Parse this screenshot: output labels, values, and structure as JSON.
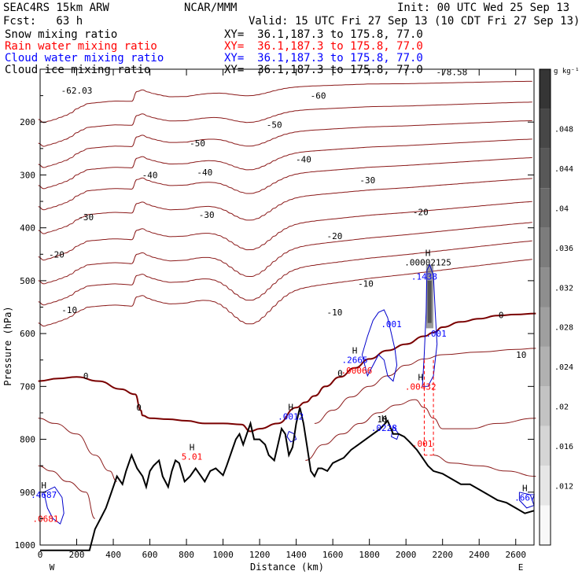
{
  "header": {
    "model": "SEAC4RS 15km ARW",
    "center": "NCAR/MMM",
    "init": "Init: 00 UTC Wed 25 Sep 13",
    "fcst": "Fcst:   63 h",
    "valid": "Valid: 15 UTC Fri 27 Sep 13 (10 CDT Fri 27 Sep 13)"
  },
  "fields": [
    {
      "name": "Snow mixing ratio",
      "xy": "XY=  36.1,187.3 to 175.8, 77.0",
      "color": "#000000"
    },
    {
      "name": "Rain water mixing ratio",
      "xy": "XY=  36.1,187.3 to 175.8, 77.0",
      "color": "#ff0000"
    },
    {
      "name": "Cloud water mixing ratio",
      "xy": "XY=  36.1,187.3 to 175.8, 77.0",
      "color": "#0000ff"
    },
    {
      "name": "Cloud ice mixing ratio",
      "xy": "XY=  36.1,187.3 to 175.8, 77.0",
      "color": "#000000"
    }
  ],
  "chart_data": {
    "type": "contour_cross_section",
    "xlabel": "Distance (km)",
    "ylabel": "Pressure (hPa)",
    "xlim": [
      0,
      2700
    ],
    "ylim": [
      1000,
      100
    ],
    "xticks": [
      0,
      200,
      400,
      600,
      800,
      1000,
      1200,
      1400,
      1600,
      1800,
      2000,
      2200,
      2400,
      2600
    ],
    "yticks": [
      200,
      300,
      400,
      500,
      600,
      700,
      800,
      900,
      1000
    ],
    "x_end_labels": {
      "left": "W",
      "right": "E"
    },
    "colorbar": {
      "unit": "g kg⁻¹",
      "ticks": [
        ".012",
        ".016",
        ".02",
        ".024",
        ".028",
        ".032",
        ".036",
        ".04",
        ".044",
        ".048"
      ]
    },
    "temperature_contour_labels": [
      {
        "text": "-62.03",
        "x": 200,
        "p": 140
      },
      {
        "text": "-78.58",
        "x": 2250,
        "p": 105
      },
      {
        "text": "-60",
        "x": 1520,
        "p": 150
      },
      {
        "text": "-50",
        "x": 860,
        "p": 240
      },
      {
        "text": "-50",
        "x": 1280,
        "p": 205
      },
      {
        "text": "-40",
        "x": 600,
        "p": 300
      },
      {
        "text": "-40",
        "x": 900,
        "p": 295
      },
      {
        "text": "-40",
        "x": 1440,
        "p": 270
      },
      {
        "text": "-30",
        "x": 250,
        "p": 380
      },
      {
        "text": "-30",
        "x": 910,
        "p": 375
      },
      {
        "text": "-30",
        "x": 1790,
        "p": 310
      },
      {
        "text": "-20",
        "x": 90,
        "p": 450
      },
      {
        "text": "-20",
        "x": 1610,
        "p": 415
      },
      {
        "text": "-20",
        "x": 2080,
        "p": 370
      },
      {
        "text": "-10",
        "x": 160,
        "p": 555
      },
      {
        "text": "-10",
        "x": 1610,
        "p": 560
      },
      {
        "text": "-10",
        "x": 1780,
        "p": 505
      },
      {
        "text": "0",
        "x": 250,
        "p": 680
      },
      {
        "text": "0",
        "x": 540,
        "p": 740
      },
      {
        "text": "0",
        "x": 1640,
        "p": 675
      },
      {
        "text": "0",
        "x": 2520,
        "p": 565
      },
      {
        "text": "10",
        "x": 2630,
        "p": 640
      },
      {
        "text": "10",
        "x": 1870,
        "p": 762
      }
    ],
    "extrema_labels": [
      {
        "letter": "H",
        "value": ".00002125",
        "x": 2120,
        "p": 465,
        "color": "#000000"
      },
      {
        "letter": "",
        "value": ".1438",
        "x": 2100,
        "p": 492,
        "color": "#0000ff"
      },
      {
        "letter": "",
        "value": ".001",
        "x": 1920,
        "p": 582,
        "color": "#0000ff"
      },
      {
        "letter": "",
        "value": ".001",
        "x": 2165,
        "p": 600,
        "color": "#0000ff"
      },
      {
        "letter": "H",
        "value": ".2665",
        "x": 1720,
        "p": 650,
        "color": "#0000ff"
      },
      {
        "letter": "",
        "value": ".00066",
        "x": 1730,
        "p": 670,
        "color": "#ff0000"
      },
      {
        "letter": "H",
        "value": ".00432",
        "x": 2080,
        "p": 700,
        "color": "#ff0000"
      },
      {
        "letter": "H",
        "value": ".0012",
        "x": 1370,
        "p": 757,
        "color": "#0000ff"
      },
      {
        "letter": "H",
        "value": ".0228",
        "x": 1880,
        "p": 778,
        "color": "#0000ff"
      },
      {
        "letter": "",
        "value": ".001",
        "x": 2090,
        "p": 808,
        "color": "#ff0000"
      },
      {
        "letter": "H",
        "value": "5.01",
        "x": 830,
        "p": 833,
        "color": "#ff0000"
      },
      {
        "letter": "H",
        "value": ".4687",
        "x": 20,
        "p": 905,
        "color": "#0000ff"
      },
      {
        "letter": "",
        "value": ".0681",
        "x": 30,
        "p": 950,
        "color": "#ff0000"
      },
      {
        "letter": "H",
        "value": ".667",
        "x": 2650,
        "p": 910,
        "color": "#0000ff"
      }
    ],
    "terrain": [
      [
        0,
        1010
      ],
      [
        50,
        1010
      ],
      [
        270,
        1010
      ],
      [
        300,
        970
      ],
      [
        330,
        950
      ],
      [
        360,
        930
      ],
      [
        380,
        910
      ],
      [
        420,
        870
      ],
      [
        450,
        885
      ],
      [
        470,
        860
      ],
      [
        500,
        830
      ],
      [
        530,
        855
      ],
      [
        560,
        870
      ],
      [
        580,
        890
      ],
      [
        600,
        860
      ],
      [
        620,
        850
      ],
      [
        650,
        840
      ],
      [
        670,
        870
      ],
      [
        700,
        890
      ],
      [
        720,
        860
      ],
      [
        740,
        840
      ],
      [
        760,
        845
      ],
      [
        790,
        880
      ],
      [
        820,
        870
      ],
      [
        850,
        855
      ],
      [
        880,
        870
      ],
      [
        900,
        880
      ],
      [
        930,
        860
      ],
      [
        960,
        855
      ],
      [
        1000,
        868
      ],
      [
        1020,
        850
      ],
      [
        1050,
        820
      ],
      [
        1070,
        800
      ],
      [
        1090,
        790
      ],
      [
        1110,
        810
      ],
      [
        1130,
        790
      ],
      [
        1150,
        770
      ],
      [
        1170,
        800
      ],
      [
        1200,
        800
      ],
      [
        1230,
        810
      ],
      [
        1250,
        830
      ],
      [
        1280,
        840
      ],
      [
        1300,
        810
      ],
      [
        1320,
        780
      ],
      [
        1340,
        790
      ],
      [
        1360,
        830
      ],
      [
        1380,
        815
      ],
      [
        1400,
        770
      ],
      [
        1420,
        740
      ],
      [
        1440,
        770
      ],
      [
        1460,
        815
      ],
      [
        1480,
        860
      ],
      [
        1500,
        870
      ],
      [
        1520,
        855
      ],
      [
        1540,
        855
      ],
      [
        1570,
        860
      ],
      [
        1600,
        845
      ],
      [
        1630,
        840
      ],
      [
        1660,
        835
      ],
      [
        1700,
        820
      ],
      [
        1740,
        810
      ],
      [
        1780,
        800
      ],
      [
        1820,
        790
      ],
      [
        1860,
        780
      ],
      [
        1900,
        765
      ],
      [
        1930,
        790
      ],
      [
        1960,
        790
      ],
      [
        1990,
        795
      ],
      [
        2020,
        805
      ],
      [
        2060,
        820
      ],
      [
        2080,
        830
      ],
      [
        2120,
        850
      ],
      [
        2150,
        860
      ],
      [
        2200,
        865
      ],
      [
        2250,
        875
      ],
      [
        2300,
        885
      ],
      [
        2350,
        885
      ],
      [
        2400,
        895
      ],
      [
        2450,
        905
      ],
      [
        2500,
        915
      ],
      [
        2550,
        920
      ],
      [
        2600,
        930
      ],
      [
        2650,
        940
      ],
      [
        2700,
        935
      ]
    ]
  }
}
